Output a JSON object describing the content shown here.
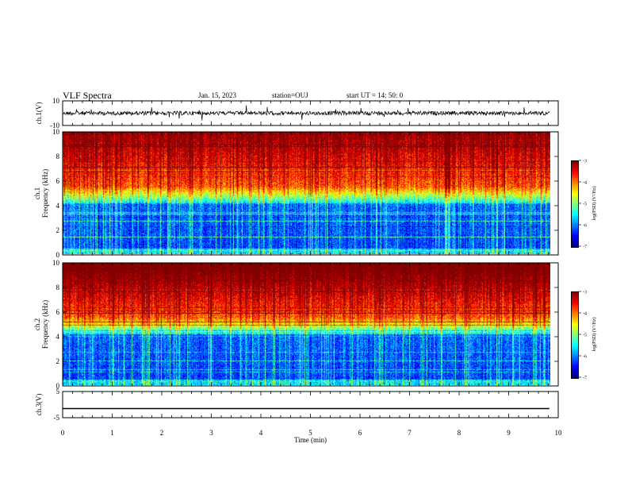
{
  "header": {
    "title": "VLF Spectra",
    "date": "Jan. 15, 2023",
    "station": "station=OUJ",
    "start_ut": "start UT =   14: 50: 0"
  },
  "chart_data": [
    {
      "type": "line",
      "ylabel": "ch.1(V)",
      "ylim": [
        -10,
        10
      ],
      "yticks": [
        "10",
        "-10"
      ],
      "x": [
        0,
        10
      ],
      "series": [
        {
          "values": [
            0,
            0
          ]
        }
      ]
    },
    {
      "type": "heatmap",
      "ylabel_line1": "ch.1",
      "ylabel_line2": "Frequency (kHz)",
      "ylim": [
        0,
        10
      ],
      "yticks": [
        "0",
        "2",
        "4",
        "6",
        "8",
        "10"
      ],
      "colorbar": {
        "label": "log(PSD) (V²/Hz)",
        "ticks": [
          "-3",
          "-4",
          "-5",
          "-6",
          "-7"
        ],
        "range": [
          -7,
          -3
        ]
      }
    },
    {
      "type": "heatmap",
      "ylabel_line1": "ch.2",
      "ylabel_line2": "Frequency (kHz)",
      "ylim": [
        0,
        10
      ],
      "yticks": [
        "0",
        "2",
        "4",
        "6",
        "8",
        "10"
      ],
      "colorbar": {
        "label": "log(PSD) (V²/Hz)",
        "ticks": [
          "-3",
          "-4",
          "-5",
          "-6",
          "-7"
        ],
        "range": [
          -7,
          -3
        ]
      }
    },
    {
      "type": "line",
      "ylabel": "ch.3(V)",
      "ylim": [
        -5,
        5
      ],
      "yticks": [
        "5",
        "-5"
      ],
      "x": [
        0,
        9.82
      ],
      "series": [
        {
          "values": [
            -1.5,
            -1.5
          ]
        }
      ]
    }
  ],
  "xaxis": {
    "label": "Time (min)",
    "ticks": [
      "0",
      "1",
      "2",
      "3",
      "4",
      "5",
      "6",
      "7",
      "8",
      "9",
      "10"
    ],
    "range": [
      0,
      10
    ]
  }
}
